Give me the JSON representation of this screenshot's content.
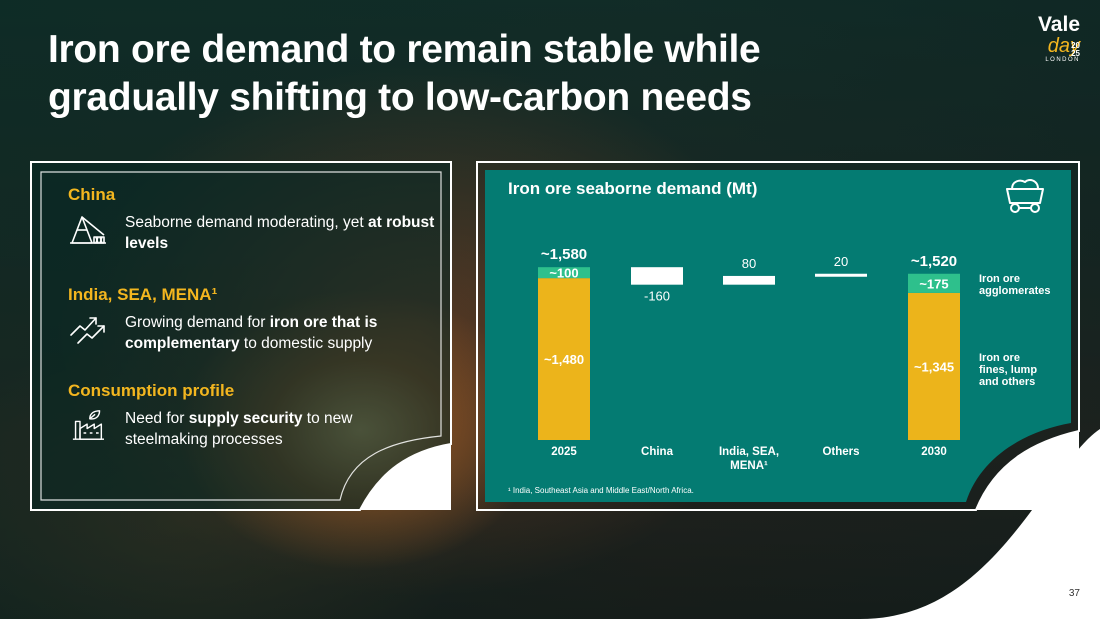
{
  "title_line1": "Iron ore demand to remain stable while",
  "title_line2": "gradually shifting to low-carbon needs",
  "logo": {
    "brand": "Vale",
    "event": "day",
    "city": "LONDON",
    "year_top": "20",
    "year_bottom": "25"
  },
  "left_panel": {
    "items": [
      {
        "heading": "China",
        "icon": "crane-icon",
        "text_plain": "Seaborne demand moderating, yet ",
        "text_bold": "at robust levels",
        "text_tail": ""
      },
      {
        "heading": "India, SEA, MENA¹",
        "icon": "growth-arrows-icon",
        "text_plain": "Growing demand for ",
        "text_bold": "iron ore that is complementary",
        "text_tail": " to domestic supply"
      },
      {
        "heading": "Consumption profile",
        "icon": "green-factory-icon",
        "text_plain": "Need for ",
        "text_bold": "supply security",
        "text_tail": " to new steelmaking processes"
      }
    ]
  },
  "chart_data": {
    "type": "bar",
    "subtype": "waterfall",
    "title": "Iron ore seaborne demand (Mt)",
    "categories": [
      "2025",
      "China",
      "India, SEA, MENA¹",
      "Others",
      "2030"
    ],
    "totals": {
      "2025": 1580,
      "2030": 1520
    },
    "total_labels": [
      "~1,580",
      "~1,520"
    ],
    "stacks": {
      "2025": [
        {
          "series": "Iron ore fines, lump and others",
          "value": 1480,
          "label": "~1,480"
        },
        {
          "series": "Iron ore agglomerates",
          "value": 100,
          "label": "~100"
        }
      ],
      "2030": [
        {
          "series": "Iron ore fines, lump and others",
          "value": 1345,
          "label": "~1,345"
        },
        {
          "series": "Iron ore agglomerates",
          "value": 175,
          "label": "~175"
        }
      ]
    },
    "changes": [
      {
        "category": "China",
        "value": -160,
        "label": "-160"
      },
      {
        "category": "India, SEA, MENA¹",
        "value": 80,
        "label": "80"
      },
      {
        "category": "Others",
        "value": 20,
        "label": "20"
      }
    ],
    "legend": [
      {
        "name": "Iron ore agglomerates",
        "color": "#2ec08c"
      },
      {
        "name": "Iron ore fines, lump and others",
        "color": "#ecb41b"
      }
    ],
    "ylim": [
      0,
      1600
    ]
  },
  "footnote": "¹ India, Southeast Asia and Middle East/North Africa.",
  "page_number": "37",
  "colors": {
    "accent": "#f3b61f",
    "teal": "#047b72",
    "agglomerates": "#2ec08c",
    "fines": "#ecb41b"
  }
}
